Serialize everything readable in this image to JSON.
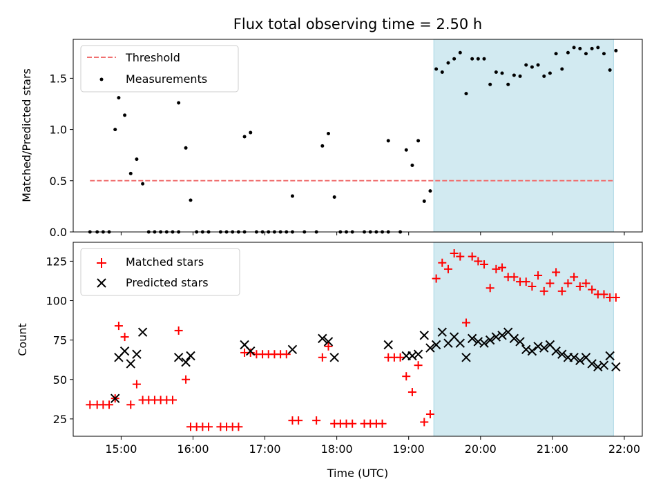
{
  "colors": {
    "threshold": "#f07070",
    "measurement": "#000000",
    "matched": "#ff0000",
    "predicted": "#000000",
    "highlight": "#add8e6"
  },
  "chart_data": [
    {
      "type": "scatter",
      "title": "Flux total observing time = 2.50 h",
      "xlabel": "",
      "ylabel": "Matched/Predicted stars",
      "xlim": [
        "14:20",
        "22:15"
      ],
      "ylim": [
        0,
        1.88
      ],
      "x_ticks": [
        "15:00",
        "16:00",
        "17:00",
        "18:00",
        "19:00",
        "20:00",
        "21:00",
        "22:00"
      ],
      "y_ticks": [
        "0.0",
        "0.5",
        "1.0",
        "1.5"
      ],
      "y_tick_values": [
        0,
        0.5,
        1.0,
        1.5
      ],
      "legend_position": "top-left",
      "grid": false,
      "highlight_span": [
        "19:21",
        "21:51"
      ],
      "threshold": {
        "name": "Threshold",
        "from": "14:34",
        "to": "21:51",
        "value": 0.5,
        "style": "dashed"
      },
      "series": [
        {
          "name": "Measurements",
          "marker": "point",
          "points": [
            [
              "14:34",
              0
            ],
            [
              "14:40",
              0
            ],
            [
              "14:45",
              0
            ],
            [
              "14:50",
              0
            ],
            [
              "14:55",
              1.0
            ],
            [
              "14:58",
              1.31
            ],
            [
              "15:03",
              1.14
            ],
            [
              "15:08",
              0.57
            ],
            [
              "15:13",
              0.71
            ],
            [
              "15:18",
              0.47
            ],
            [
              "15:23",
              0
            ],
            [
              "15:28",
              0
            ],
            [
              "15:33",
              0
            ],
            [
              "15:38",
              0
            ],
            [
              "15:43",
              0
            ],
            [
              "15:48",
              0
            ],
            [
              "15:48",
              1.26
            ],
            [
              "15:54",
              0.82
            ],
            [
              "15:58",
              0.31
            ],
            [
              "16:03",
              0
            ],
            [
              "16:08",
              0
            ],
            [
              "16:13",
              0
            ],
            [
              "16:23",
              0
            ],
            [
              "16:28",
              0
            ],
            [
              "16:33",
              0
            ],
            [
              "16:38",
              0
            ],
            [
              "16:43",
              0
            ],
            [
              "16:43",
              0.93
            ],
            [
              "16:48",
              0.97
            ],
            [
              "16:53",
              0
            ],
            [
              "16:58",
              0
            ],
            [
              "17:03",
              0
            ],
            [
              "17:08",
              0
            ],
            [
              "17:13",
              0
            ],
            [
              "17:18",
              0
            ],
            [
              "17:23",
              0
            ],
            [
              "17:23",
              0.35
            ],
            [
              "17:33",
              0
            ],
            [
              "17:43",
              0
            ],
            [
              "17:48",
              0.84
            ],
            [
              "17:53",
              0.96
            ],
            [
              "17:58",
              0.34
            ],
            [
              "18:03",
              0
            ],
            [
              "18:08",
              0
            ],
            [
              "18:13",
              0
            ],
            [
              "18:23",
              0
            ],
            [
              "18:28",
              0
            ],
            [
              "18:33",
              0
            ],
            [
              "18:38",
              0
            ],
            [
              "18:43",
              0
            ],
            [
              "18:43",
              0.89
            ],
            [
              "18:53",
              0
            ],
            [
              "18:58",
              0.8
            ],
            [
              "19:03",
              0.65
            ],
            [
              "19:08",
              0.89
            ],
            [
              "19:13",
              0.3
            ],
            [
              "19:18",
              0.4
            ],
            [
              "19:23",
              1.59
            ],
            [
              "19:28",
              1.56
            ],
            [
              "19:33",
              1.65
            ],
            [
              "19:38",
              1.69
            ],
            [
              "19:43",
              1.75
            ],
            [
              "19:48",
              1.35
            ],
            [
              "19:53",
              1.69
            ],
            [
              "19:58",
              1.69
            ],
            [
              "20:03",
              1.69
            ],
            [
              "20:08",
              1.44
            ],
            [
              "20:13",
              1.56
            ],
            [
              "20:18",
              1.55
            ],
            [
              "20:23",
              1.44
            ],
            [
              "20:28",
              1.53
            ],
            [
              "20:33",
              1.52
            ],
            [
              "20:38",
              1.63
            ],
            [
              "20:43",
              1.61
            ],
            [
              "20:48",
              1.63
            ],
            [
              "20:53",
              1.52
            ],
            [
              "20:58",
              1.55
            ],
            [
              "21:03",
              1.74
            ],
            [
              "21:08",
              1.59
            ],
            [
              "21:13",
              1.75
            ],
            [
              "21:18",
              1.8
            ],
            [
              "21:23",
              1.79
            ],
            [
              "21:28",
              1.74
            ],
            [
              "21:33",
              1.79
            ],
            [
              "21:38",
              1.8
            ],
            [
              "21:43",
              1.74
            ],
            [
              "21:48",
              1.58
            ],
            [
              "21:53",
              1.77
            ]
          ]
        }
      ]
    },
    {
      "type": "scatter",
      "title": "",
      "xlabel": "Time (UTC)",
      "ylabel": "Count",
      "xlim": [
        "14:20",
        "22:15"
      ],
      "ylim": [
        14,
        137
      ],
      "x_ticks": [
        "15:00",
        "16:00",
        "17:00",
        "18:00",
        "19:00",
        "20:00",
        "21:00",
        "22:00"
      ],
      "y_ticks": [
        "25",
        "50",
        "75",
        "100",
        "125"
      ],
      "y_tick_values": [
        25,
        50,
        75,
        100,
        125
      ],
      "legend_position": "top-left",
      "grid": false,
      "highlight_span": [
        "19:21",
        "21:51"
      ],
      "series": [
        {
          "name": "Matched stars",
          "marker": "plus",
          "points": [
            [
              "14:34",
              34
            ],
            [
              "14:40",
              34
            ],
            [
              "14:45",
              34
            ],
            [
              "14:50",
              34
            ],
            [
              "14:55",
              38
            ],
            [
              "14:58",
              84
            ],
            [
              "15:03",
              77
            ],
            [
              "15:08",
              34
            ],
            [
              "15:13",
              47
            ],
            [
              "15:18",
              37
            ],
            [
              "15:23",
              37
            ],
            [
              "15:28",
              37
            ],
            [
              "15:33",
              37
            ],
            [
              "15:38",
              37
            ],
            [
              "15:43",
              37
            ],
            [
              "15:48",
              81
            ],
            [
              "15:54",
              50
            ],
            [
              "15:58",
              20
            ],
            [
              "16:03",
              20
            ],
            [
              "16:08",
              20
            ],
            [
              "16:13",
              20
            ],
            [
              "16:23",
              20
            ],
            [
              "16:28",
              20
            ],
            [
              "16:33",
              20
            ],
            [
              "16:38",
              20
            ],
            [
              "16:43",
              67
            ],
            [
              "16:48",
              67
            ],
            [
              "16:53",
              66
            ],
            [
              "16:58",
              66
            ],
            [
              "17:03",
              66
            ],
            [
              "17:08",
              66
            ],
            [
              "17:13",
              66
            ],
            [
              "17:18",
              66
            ],
            [
              "17:23",
              24
            ],
            [
              "17:28",
              24
            ],
            [
              "17:43",
              24
            ],
            [
              "17:48",
              64
            ],
            [
              "17:53",
              71
            ],
            [
              "17:58",
              22
            ],
            [
              "18:03",
              22
            ],
            [
              "18:08",
              22
            ],
            [
              "18:13",
              22
            ],
            [
              "18:23",
              22
            ],
            [
              "18:28",
              22
            ],
            [
              "18:33",
              22
            ],
            [
              "18:38",
              22
            ],
            [
              "18:43",
              64
            ],
            [
              "18:48",
              64
            ],
            [
              "18:53",
              64
            ],
            [
              "18:58",
              52
            ],
            [
              "19:03",
              42
            ],
            [
              "19:08",
              59
            ],
            [
              "19:13",
              23
            ],
            [
              "19:18",
              28
            ],
            [
              "19:23",
              114
            ],
            [
              "19:28",
              124
            ],
            [
              "19:33",
              120
            ],
            [
              "19:38",
              130
            ],
            [
              "19:43",
              128
            ],
            [
              "19:48",
              86
            ],
            [
              "19:53",
              128
            ],
            [
              "19:58",
              125
            ],
            [
              "20:03",
              123
            ],
            [
              "20:08",
              108
            ],
            [
              "20:13",
              120
            ],
            [
              "20:18",
              121
            ],
            [
              "20:23",
              115
            ],
            [
              "20:28",
              115
            ],
            [
              "20:33",
              112
            ],
            [
              "20:38",
              112
            ],
            [
              "20:43",
              109
            ],
            [
              "20:48",
              116
            ],
            [
              "20:53",
              106
            ],
            [
              "20:58",
              111
            ],
            [
              "21:03",
              118
            ],
            [
              "21:08",
              106
            ],
            [
              "21:13",
              111
            ],
            [
              "21:18",
              115
            ],
            [
              "21:23",
              109
            ],
            [
              "21:28",
              111
            ],
            [
              "21:33",
              107
            ],
            [
              "21:38",
              104
            ],
            [
              "21:43",
              104
            ],
            [
              "21:48",
              102
            ],
            [
              "21:53",
              102
            ]
          ]
        },
        {
          "name": "Predicted stars",
          "marker": "x",
          "points": [
            [
              "14:55",
              38
            ],
            [
              "14:58",
              64
            ],
            [
              "15:03",
              68
            ],
            [
              "15:08",
              60
            ],
            [
              "15:13",
              66
            ],
            [
              "15:18",
              80
            ],
            [
              "15:48",
              64
            ],
            [
              "15:54",
              61
            ],
            [
              "15:58",
              65
            ],
            [
              "16:43",
              72
            ],
            [
              "16:48",
              68
            ],
            [
              "17:23",
              69
            ],
            [
              "17:48",
              76
            ],
            [
              "17:53",
              74
            ],
            [
              "17:58",
              64
            ],
            [
              "18:43",
              72
            ],
            [
              "18:58",
              65
            ],
            [
              "19:03",
              65
            ],
            [
              "19:08",
              66
            ],
            [
              "19:13",
              78
            ],
            [
              "19:18",
              70
            ],
            [
              "19:23",
              72
            ],
            [
              "19:28",
              80
            ],
            [
              "19:33",
              73
            ],
            [
              "19:38",
              77
            ],
            [
              "19:43",
              73
            ],
            [
              "19:48",
              64
            ],
            [
              "19:53",
              76
            ],
            [
              "19:58",
              74
            ],
            [
              "20:03",
              73
            ],
            [
              "20:08",
              75
            ],
            [
              "20:13",
              77
            ],
            [
              "20:18",
              78
            ],
            [
              "20:23",
              80
            ],
            [
              "20:28",
              76
            ],
            [
              "20:33",
              74
            ],
            [
              "20:38",
              69
            ],
            [
              "20:43",
              68
            ],
            [
              "20:48",
              71
            ],
            [
              "20:53",
              70
            ],
            [
              "20:58",
              72
            ],
            [
              "21:03",
              68
            ],
            [
              "21:08",
              66
            ],
            [
              "21:13",
              64
            ],
            [
              "21:18",
              64
            ],
            [
              "21:23",
              62
            ],
            [
              "21:28",
              64
            ],
            [
              "21:33",
              60
            ],
            [
              "21:38",
              58
            ],
            [
              "21:43",
              59
            ],
            [
              "21:48",
              65
            ],
            [
              "21:53",
              58
            ]
          ]
        }
      ]
    }
  ]
}
